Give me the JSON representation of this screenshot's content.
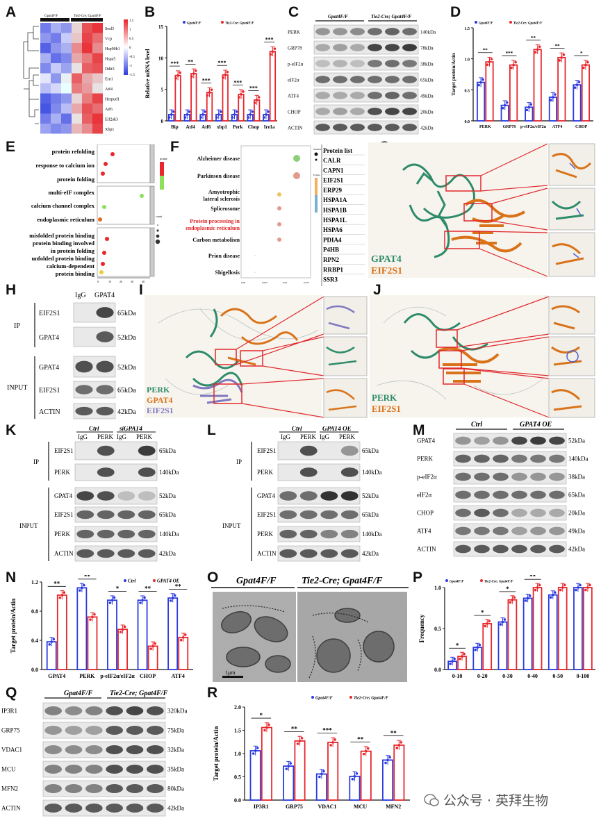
{
  "panels": {
    "A": "A",
    "B": "B",
    "C": "C",
    "D": "D",
    "E": "E",
    "F": "F",
    "G": "G",
    "H": "H",
    "I": "I",
    "J": "J",
    "K": "K",
    "L": "L",
    "M": "M",
    "N": "N",
    "O": "O",
    "P": "P",
    "Q": "Q",
    "R": "R"
  },
  "colors": {
    "ctrl": "#2b3be0",
    "ko": "#e8262c",
    "gpat4": "#2e8b6a",
    "eif2s1": "#d9731a",
    "perk_protein": "#2e8b6a",
    "eif2s1_purple": "#7f78c0"
  },
  "heatmap": {
    "header_left": "Gpat4F/F",
    "header_right": "Tie2-Cre; Gpat4F/F",
    "genes": [
      "Sesl3",
      "Vcp",
      "Hsp90b1",
      "Hspa5",
      "Ddit3",
      "Ern1",
      "Atf4",
      "Herpud1",
      "Atf6",
      "Eif2ak3",
      "Xbp1"
    ],
    "scale_labels": [
      "1.5",
      "1",
      "0.5",
      "0",
      "-0.5",
      "-1",
      "-1.5"
    ]
  },
  "westernC": {
    "group_left": "Gpat4F/F",
    "group_right": "Tie2-Cre; Gpat4F/F",
    "rows": [
      {
        "label": "PERK",
        "kda": "140kDa"
      },
      {
        "label": "GRP78",
        "kda": "78kDa"
      },
      {
        "label": "p-eIF2α",
        "kda": "38kDa"
      },
      {
        "label": "eIF2α",
        "kda": "65kDa"
      },
      {
        "label": "ATF4",
        "kda": "49kDa"
      },
      {
        "label": "CHOP",
        "kda": "20kDa"
      },
      {
        "label": "ACTIN",
        "kda": "42kDa"
      }
    ]
  },
  "enrichmentE": {
    "bp": [
      "protein refolding",
      "response to calcium ion",
      "protein folding"
    ],
    "cc": [
      "multi-eIF complex",
      "calcium channel complex",
      "endoplasmic reticulum"
    ],
    "mf": [
      "misfolded protein binding",
      "protein binding involved",
      "in protein folding",
      "unfolded protein binding",
      "calcium-dependent",
      "protein binding"
    ],
    "legend_title": "pvalue",
    "count_title": "count"
  },
  "keggF": {
    "terms": [
      "Alzheimer disease",
      "Parkinson disease",
      "Amyotrophic",
      "lateral sclerosis",
      "Spliceosome",
      "Protein processing in",
      "endoplasmic reticulum",
      "Carbon metabolism",
      "Prion disease",
      "Shigellosis"
    ],
    "protein_list_title": "Protein list",
    "proteins": [
      "CALR",
      "CAPN1",
      "EIF2S1",
      "ERP29",
      "HSPA1A",
      "HSPA1B",
      "HSPA1L",
      "HSPA6",
      "PDIA4",
      "P4HB",
      "RPN2",
      "RRBP1",
      "SSR3"
    ],
    "legend_number": "Number",
    "legend_pvalue": "Pvalue"
  },
  "structureG": {
    "l1": "GPAT4",
    "l2": "EIF2S1"
  },
  "structureI": {
    "l1": "PERK",
    "l2": "GPAT4",
    "l3": "EIF2S1"
  },
  "structureJ": {
    "l1": "PERK",
    "l2": "EIF2S1"
  },
  "coipH": {
    "cols": [
      "IgG",
      "GPAT4"
    ],
    "ip": "IP",
    "input": "INPUT",
    "rows": [
      {
        "label": "EIF2S1",
        "kda": "65kDa"
      },
      {
        "label": "GPAT4",
        "kda": "52kDa"
      },
      {
        "label": "GPAT4",
        "kda": "52kDa"
      },
      {
        "label": "EIF2S1",
        "kda": "65kDa"
      },
      {
        "label": "ACTIN",
        "kda": "42kDa"
      }
    ]
  },
  "coipK": {
    "groups": [
      "Ctrl",
      "siGPAT4"
    ],
    "cols": [
      "IgG",
      "PERK",
      "IgG",
      "PERK"
    ],
    "ip": "IP",
    "input": "INPUT",
    "rows": [
      {
        "label": "EIF2S1",
        "kda": "65kDa"
      },
      {
        "label": "PERK",
        "kda": "140kDa"
      },
      {
        "label": "GPAT4",
        "kda": "52kDa"
      },
      {
        "label": "EIF2S1",
        "kda": "65kDa"
      },
      {
        "label": "PERK",
        "kda": "140kDa"
      },
      {
        "label": "ACTIN",
        "kda": "42kDa"
      }
    ]
  },
  "coipL": {
    "groups": [
      "Ctrl",
      "GPAT4 OE"
    ],
    "cols": [
      "IgG",
      "PERK",
      "IgG",
      "PERK"
    ],
    "ip": "IP",
    "input": "INPUT",
    "rows": [
      {
        "label": "EIF2S1",
        "kda": "65kDa"
      },
      {
        "label": "PERK",
        "kda": "140kDa"
      },
      {
        "label": "GPAT4",
        "kda": "52kDa"
      },
      {
        "label": "EIF2S1",
        "kda": "65kDa"
      },
      {
        "label": "PERK",
        "kda": "140kDa"
      },
      {
        "label": "ACTIN",
        "kda": "42kDa"
      }
    ]
  },
  "westernM": {
    "groups": [
      "Ctrl",
      "GPAT4 OE"
    ],
    "rows": [
      {
        "label": "GPAT4",
        "kda": "52kDa"
      },
      {
        "label": "PERK",
        "kda": "140kDa"
      },
      {
        "label": "p-eIF2α",
        "kda": "38kDa"
      },
      {
        "label": "eIF2α",
        "kda": "65kDa"
      },
      {
        "label": "CHOP",
        "kda": "20kDa"
      },
      {
        "label": "ATF4",
        "kda": "49kDa"
      },
      {
        "label": "ACTIN",
        "kda": "42kDa"
      }
    ]
  },
  "emO": {
    "left": "Gpat4F/F",
    "right": "Tie2-Cre; Gpat4F/F",
    "scale": "1μm"
  },
  "westernQ": {
    "group_left": "Gpat4F/F",
    "group_right": "Tie2-Cre; Gpat4F/F",
    "rows": [
      {
        "label": "IP3R1",
        "kda": "320kDa"
      },
      {
        "label": "GRP75",
        "kda": "75kDa"
      },
      {
        "label": "VDAC1",
        "kda": "32kDa"
      },
      {
        "label": "MCU",
        "kda": "35kDa"
      },
      {
        "label": "MFN2",
        "kda": "80kDa"
      },
      {
        "label": "ACTIN",
        "kda": "42kDa"
      }
    ]
  },
  "watermark": {
    "text": "公众号 · 英拜生物"
  },
  "chart_data": [
    {
      "id": "B",
      "type": "bar",
      "ylabel": "Relative mRNA level",
      "ylim": [
        0,
        15
      ],
      "yticks": [
        0,
        5,
        10,
        15
      ],
      "categories": [
        "Bip",
        "Atf4",
        "Atf6",
        "xbp1",
        "Perk",
        "Chop",
        "Ire1a"
      ],
      "series": [
        {
          "name": "Gpat4F/F",
          "values": [
            1,
            1,
            1,
            1,
            1,
            1,
            1
          ]
        },
        {
          "name": "Tie2-Cre; Gpat4F/F",
          "values": [
            7.2,
            7.5,
            4.5,
            7.3,
            4.2,
            3.3,
            11
          ]
        }
      ],
      "sig": [
        "***",
        "**",
        "***",
        "***",
        "***",
        "***",
        "***"
      ]
    },
    {
      "id": "D",
      "type": "bar",
      "ylabel": "Target protein/Actin",
      "ylim": [
        0,
        1.5
      ],
      "yticks": [
        0.0,
        0.5,
        1.0,
        1.5
      ],
      "categories": [
        "PERK",
        "GRP78",
        "p-eIF2α/eIF2α",
        "ATF4",
        "CHOP"
      ],
      "series": [
        {
          "name": "Gpat4F/F",
          "values": [
            0.62,
            0.25,
            0.22,
            0.38,
            0.58
          ]
        },
        {
          "name": "Tie2-Cre; Gpat4F/F",
          "values": [
            0.95,
            0.9,
            1.15,
            1.02,
            0.9
          ]
        }
      ],
      "sig": [
        "**",
        "***",
        "**",
        "**",
        "*"
      ]
    },
    {
      "id": "N",
      "type": "bar",
      "ylabel": "Target protein/Actin",
      "ylim": [
        0,
        1.2
      ],
      "yticks": [
        0.0,
        0.4,
        0.8,
        1.2
      ],
      "categories": [
        "GPAT4",
        "PERK",
        "p-eIF2α/eIF2α",
        "CHOP",
        "ATF4"
      ],
      "series": [
        {
          "name": "Ctrl",
          "values": [
            0.38,
            1.12,
            0.95,
            0.95,
            0.98
          ]
        },
        {
          "name": "GPAT4 OE",
          "values": [
            1.02,
            0.72,
            0.55,
            0.32,
            0.44
          ]
        }
      ],
      "sig": [
        "**",
        "**",
        "*",
        "**",
        "**"
      ]
    },
    {
      "id": "P",
      "type": "bar",
      "ylabel": "Frequency",
      "ylim": [
        0,
        1.0
      ],
      "yticks": [
        0.0,
        0.5,
        1.0
      ],
      "categories": [
        "0-10",
        "0-20",
        "0-30",
        "0-40",
        "0-50",
        "0-100"
      ],
      "series": [
        {
          "name": "Gpat4F/F",
          "values": [
            0.1,
            0.27,
            0.58,
            0.87,
            0.91,
            1.0
          ]
        },
        {
          "name": "Tie2-Cre; Gpat4F/F",
          "values": [
            0.16,
            0.56,
            0.85,
            1.0,
            1.0,
            1.0
          ]
        }
      ],
      "sig": [
        "*",
        "*",
        "*",
        "**",
        "",
        ""
      ]
    },
    {
      "id": "R",
      "type": "bar",
      "ylabel": "Target protein/Actin",
      "ylim": [
        0,
        2.0
      ],
      "yticks": [
        0.0,
        0.5,
        1.0,
        1.5,
        2.0
      ],
      "categories": [
        "IP3R1",
        "GRP75",
        "VDAC1",
        "MCU",
        "MFN2"
      ],
      "series": [
        {
          "name": "Gpat4F/F",
          "values": [
            1.06,
            0.73,
            0.56,
            0.51,
            0.86
          ]
        },
        {
          "name": "Tie2-Cre; Gpat4F/F",
          "values": [
            1.56,
            1.27,
            1.24,
            1.05,
            1.18
          ]
        }
      ],
      "sig": [
        "*",
        "**",
        "***",
        "**",
        "**"
      ]
    }
  ]
}
